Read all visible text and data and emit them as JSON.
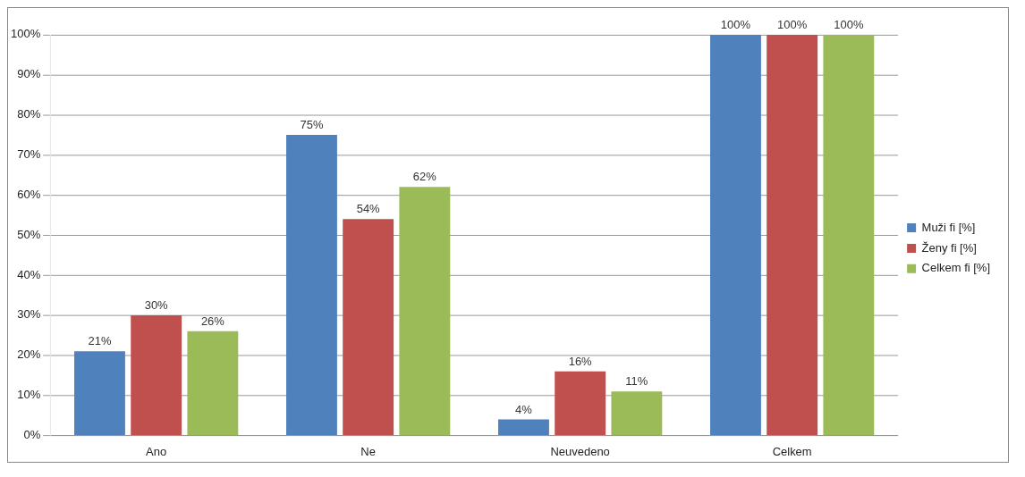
{
  "chart_data": {
    "type": "bar",
    "categories": [
      "Ano",
      "Ne",
      "Neuvedeno",
      "Celkem"
    ],
    "series": [
      {
        "name": "Muži fi [%]",
        "color": "#4f81bd",
        "values": [
          21,
          75,
          4,
          100
        ],
        "value_labels": [
          "21%",
          "75%",
          "4%",
          "100%"
        ]
      },
      {
        "name": "Ženy fi [%]",
        "color": "#c0504d",
        "values": [
          30,
          54,
          16,
          100
        ],
        "value_labels": [
          "30%",
          "54%",
          "16%",
          "100%"
        ]
      },
      {
        "name": "Celkem fi [%]",
        "color": "#9bbb59",
        "values": [
          26,
          62,
          11,
          100
        ],
        "value_labels": [
          "26%",
          "62%",
          "11%",
          "100%"
        ]
      }
    ],
    "ylim": [
      0,
      100
    ],
    "yticks": [
      {
        "value": 0,
        "label": "0%"
      },
      {
        "value": 10,
        "label": "10%"
      },
      {
        "value": 20,
        "label": "20%"
      },
      {
        "value": 30,
        "label": "30%"
      },
      {
        "value": 40,
        "label": "40%"
      },
      {
        "value": 50,
        "label": "50%"
      },
      {
        "value": 60,
        "label": "60%"
      },
      {
        "value": 70,
        "label": "70%"
      },
      {
        "value": 80,
        "label": "80%"
      },
      {
        "value": 90,
        "label": "90%"
      },
      {
        "value": 100,
        "label": "100%"
      }
    ],
    "grid": "y",
    "legend": "right"
  }
}
